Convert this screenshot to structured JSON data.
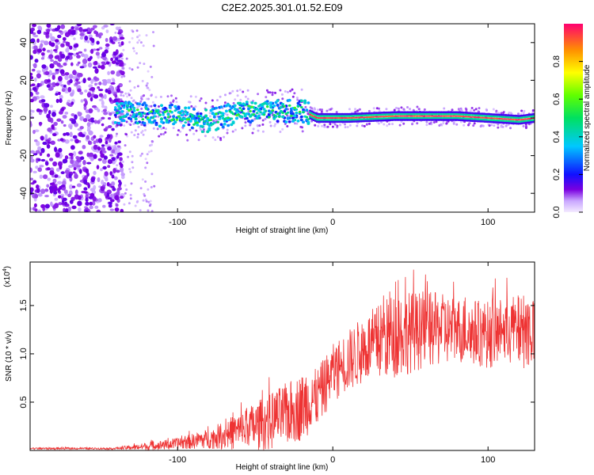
{
  "title": "C2E2.2025.301.01.52.E09",
  "chart_data": [
    {
      "type": "heatmap",
      "name": "spectrogram",
      "xlabel": "Height of straight line (km)",
      "ylabel": "Frequency (Hz)",
      "xlim": [
        -195,
        130
      ],
      "ylim": [
        -50,
        50
      ],
      "xticks": [
        -100,
        0,
        100
      ],
      "yticks": [
        -40,
        -20,
        0,
        20,
        40
      ],
      "colorbar": {
        "label": "Normalized spectral amplitude",
        "range": [
          0,
          1
        ],
        "ticks": [
          0.0,
          0.2,
          0.4,
          0.6,
          0.8
        ]
      },
      "ridge": [
        {
          "x": -140,
          "f": 3
        },
        {
          "x": -120,
          "f": 2
        },
        {
          "x": -100,
          "f": 1
        },
        {
          "x": -80,
          "f": -2
        },
        {
          "x": -60,
          "f": 4
        },
        {
          "x": -40,
          "f": 3
        },
        {
          "x": -20,
          "f": 4
        },
        {
          "x": -10,
          "f": 0
        },
        {
          "x": 10,
          "f": 0
        },
        {
          "x": 40,
          "f": 1
        },
        {
          "x": 80,
          "f": 1
        },
        {
          "x": 120,
          "f": -1
        },
        {
          "x": 130,
          "f": 0
        }
      ]
    },
    {
      "type": "line",
      "name": "snr",
      "xlabel": "Height of straight line (km)",
      "ylabel": "SNR (10 * v/v)",
      "yscale_note": "(x10",
      "yscale_exp": "4",
      "xlim": [
        -195,
        130
      ],
      "ylim": [
        0,
        1.95
      ],
      "xticks": [
        -100,
        0,
        100
      ],
      "yticks": [
        0.5,
        1.0,
        1.5
      ],
      "ytick_labels": [
        "0.5",
        "1.0",
        "1.5"
      ],
      "color": "#ee3333",
      "envelope": [
        {
          "x": -195,
          "base": 0.02,
          "amp": 0.01
        },
        {
          "x": -140,
          "base": 0.02,
          "amp": 0.01
        },
        {
          "x": -120,
          "base": 0.04,
          "amp": 0.04
        },
        {
          "x": -100,
          "base": 0.07,
          "amp": 0.06
        },
        {
          "x": -80,
          "base": 0.12,
          "amp": 0.1
        },
        {
          "x": -60,
          "base": 0.2,
          "amp": 0.2
        },
        {
          "x": -40,
          "base": 0.3,
          "amp": 0.3
        },
        {
          "x": -20,
          "base": 0.45,
          "amp": 0.35
        },
        {
          "x": -10,
          "base": 0.55,
          "amp": 0.3
        },
        {
          "x": 0,
          "base": 0.8,
          "amp": 0.3
        },
        {
          "x": 20,
          "base": 1.05,
          "amp": 0.35
        },
        {
          "x": 40,
          "base": 1.2,
          "amp": 0.45
        },
        {
          "x": 60,
          "base": 1.25,
          "amp": 0.4
        },
        {
          "x": 80,
          "base": 1.25,
          "amp": 0.35
        },
        {
          "x": 100,
          "base": 1.2,
          "amp": 0.35
        },
        {
          "x": 130,
          "base": 1.25,
          "amp": 0.4
        }
      ]
    }
  ]
}
